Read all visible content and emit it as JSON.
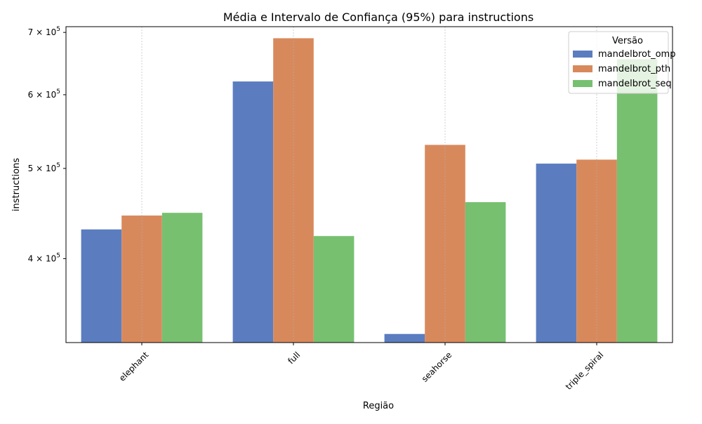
{
  "chart_data": {
    "type": "bar",
    "title": "Média e Intervalo de Confiança (95%) para instructions",
    "xlabel": "Região",
    "ylabel": "instructions",
    "yscale": "log",
    "ylim": [
      325000,
      710000
    ],
    "y_ticks": [
      {
        "value": 400000,
        "mantissa": "4",
        "base": "10",
        "exp": "5"
      },
      {
        "value": 500000,
        "mantissa": "5",
        "base": "10",
        "exp": "5"
      },
      {
        "value": 600000,
        "mantissa": "6",
        "base": "10",
        "exp": "5"
      },
      {
        "value": 700000,
        "mantissa": "7",
        "base": "10",
        "exp": "5"
      }
    ],
    "categories": [
      "elephant",
      "full",
      "seahorse",
      "triple_spiral"
    ],
    "x_grid": true,
    "legend": {
      "title": "Versão",
      "position": "top-right"
    },
    "series": [
      {
        "name": "mandelbrot_omp",
        "color": "#5b7dc0",
        "values": [
          430000,
          620000,
          332000,
          506000
        ]
      },
      {
        "name": "mandelbrot_pth",
        "color": "#d8895c",
        "values": [
          445000,
          690000,
          530000,
          511000
        ]
      },
      {
        "name": "mandelbrot_seq",
        "color": "#77c070",
        "values": [
          448000,
          423000,
          460000,
          655000
        ]
      }
    ]
  }
}
